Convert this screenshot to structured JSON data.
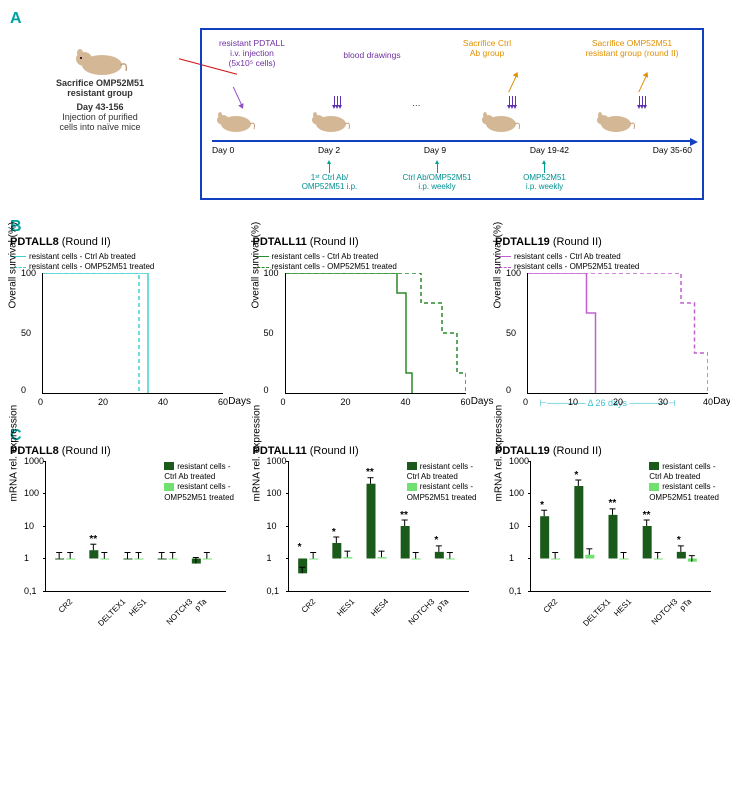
{
  "colors": {
    "teal": "#00a0a0",
    "darkGreen": "#1a5a1a",
    "lightGreen": "#70e070",
    "purple": "#b050d0",
    "pdtall8": "#40d0d0",
    "pdtall11": "#2a8a2a",
    "pdtall19": "#c060d0"
  },
  "panelA": {
    "leftTitle1": "Sacrifice OMP52M51",
    "leftTitle2": "resistant group",
    "leftDay": "Day 43-156",
    "leftNote": "Injection of purified\ncells into naïve mice",
    "box": {
      "label1": "resistant PDTALL\ni.v. injection\n(5x10⁵ cells)",
      "label2": "blood drawings",
      "label3": "Sacrifice Ctrl\nAb group",
      "label4": "Sacrifice OMP52M51\nresistant group (round II)",
      "days": [
        "Day 0",
        "Day 2",
        "Day 9",
        "Day 19-42",
        "Day 35-60"
      ],
      "bottom1": "1ˢᵗ Ctrl Ab/\nOMP52M51 i.p.",
      "bottom2": "Ctrl Ab/OMP52M51\ni.p. weekly",
      "bottom3": "OMP52M51\ni.p. weekly"
    }
  },
  "panelB": {
    "ylabel": "Overall survival (%)",
    "xlabel": "Days",
    "yticks": [
      "0",
      "50",
      "100"
    ],
    "legend1": "resistant cells - Ctrl Ab treated",
    "legend2": "resistant cells - OMP52M51 treated",
    "charts": [
      {
        "title": "PDTALL8",
        "sub": "(Round II)",
        "color": "#40d0d0",
        "xticks": [
          "0",
          "20",
          "40",
          "60"
        ],
        "solid": [
          [
            0,
            0
          ],
          [
            35,
            0
          ],
          [
            35,
            120
          ]
        ],
        "dashed": [
          [
            0,
            0
          ],
          [
            32,
            0
          ],
          [
            32,
            120
          ]
        ]
      },
      {
        "title": "PDTALL11",
        "sub": "(Round II)",
        "color": "#2a8a2a",
        "xticks": [
          "0",
          "20",
          "40",
          "60"
        ],
        "solid": [
          [
            0,
            0
          ],
          [
            37,
            0
          ],
          [
            37,
            20
          ],
          [
            40,
            20
          ],
          [
            40,
            100
          ],
          [
            42,
            100
          ],
          [
            42,
            120
          ]
        ],
        "dashed": [
          [
            0,
            0
          ],
          [
            45,
            0
          ],
          [
            45,
            30
          ],
          [
            52,
            30
          ],
          [
            52,
            60
          ],
          [
            57,
            60
          ],
          [
            57,
            100
          ],
          [
            60,
            100
          ],
          [
            60,
            120
          ]
        ]
      },
      {
        "title": "PDTALL19",
        "sub": "(Round II)",
        "color": "#c060d0",
        "xticks": [
          "0",
          "10",
          "20",
          "30",
          "40"
        ],
        "xmax": 40,
        "solid": [
          [
            0,
            0
          ],
          [
            13,
            0
          ],
          [
            13,
            40
          ],
          [
            15,
            40
          ],
          [
            15,
            120
          ]
        ],
        "dashed": [
          [
            0,
            0
          ],
          [
            34,
            0
          ],
          [
            34,
            30
          ],
          [
            37,
            30
          ],
          [
            37,
            80
          ],
          [
            40,
            80
          ],
          [
            40,
            120
          ]
        ],
        "delta": "Δ 26 days"
      }
    ]
  },
  "panelC": {
    "ylabel": "mRNA rel. expression",
    "legend1": "resistant cells -\nCtrl Ab treated",
    "legend2": "resistant cells -\nOMP52M51 treated",
    "yticks": [
      "0,1",
      "1",
      "10",
      "100",
      "1000"
    ],
    "charts": [
      {
        "title": "PDTALL8",
        "sub": "(Round II)",
        "genes": [
          "CR2",
          "DELTEX1",
          "HES1",
          "NOTCH3",
          "pTa"
        ],
        "darkValues": [
          1.0,
          1.8,
          1.0,
          1.0,
          0.7
        ],
        "lightValues": [
          1.0,
          1.0,
          1.0,
          1.0,
          1.0
        ],
        "sig": [
          "",
          "**",
          "",
          "",
          ""
        ]
      },
      {
        "title": "PDTALL11",
        "sub": "(Round II)",
        "genes": [
          "CR2",
          "HES1",
          "HES4",
          "NOTCH3",
          "pTa"
        ],
        "darkValues": [
          0.35,
          3.0,
          200,
          10,
          1.6
        ],
        "lightValues": [
          1.0,
          1.1,
          1.1,
          1.0,
          1.0
        ],
        "sig": [
          "*",
          "*",
          "**",
          "**",
          "*"
        ]
      },
      {
        "title": "PDTALL19",
        "sub": "(Round II)",
        "genes": [
          "CR2",
          "DELTEX1",
          "HES1",
          "NOTCH3",
          "pTa"
        ],
        "darkValues": [
          20,
          170,
          22,
          10,
          1.6
        ],
        "lightValues": [
          1.0,
          1.3,
          1.0,
          1.0,
          0.8
        ],
        "sig": [
          "*",
          "*",
          "**",
          "**",
          "*"
        ]
      }
    ]
  }
}
